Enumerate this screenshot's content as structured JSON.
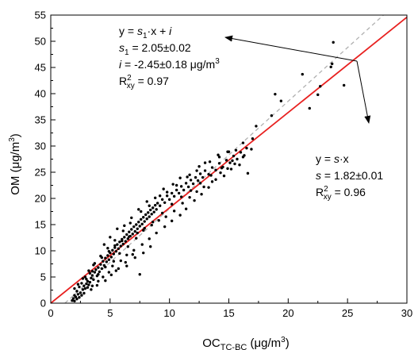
{
  "chart_data": {
    "type": "scatter",
    "title": "",
    "xlabel": {
      "main": "OC",
      "sub": "TC-BC",
      "unit": " (μg/m",
      "sup": "3",
      "close": ")"
    },
    "ylabel": {
      "main": "OM",
      "unit": " (μg/m",
      "sup": "3",
      "close": ")"
    },
    "xlim": [
      0,
      30
    ],
    "ylim": [
      0,
      55
    ],
    "xticks": [
      "0",
      "5",
      "10",
      "15",
      "20",
      "25",
      "30"
    ],
    "yticks": [
      "0",
      "5",
      "10",
      "15",
      "20",
      "25",
      "30",
      "35",
      "40",
      "45",
      "50",
      "55"
    ],
    "grid": false,
    "fits": [
      {
        "equation": "y = s·x",
        "slope": 1.82,
        "intercept": 0,
        "color": "#e8201f",
        "style": "solid"
      },
      {
        "equation": "y = s1·x + i",
        "slope": 2.05,
        "intercept": -2.45,
        "color": "#b0b0b0",
        "style": "dashed"
      }
    ],
    "annotations": {
      "fit1": {
        "eq_prefix": "y = ",
        "eq_s": "s",
        "eq_sub": "1",
        "eq_mid": "·x + ",
        "eq_i": "i",
        "s_label": "s",
        "s_sub": "1",
        "s_value": " = 2.05±0.02",
        "i_label": "i",
        "i_value": " = -2.45±0.18 μg/m",
        "i_sup": "3",
        "r_label": "R",
        "r_sup": "2",
        "r_sub": "xy",
        "r_value": " = 0.97"
      },
      "fit2": {
        "eq_prefix": "y = ",
        "eq_s": "s",
        "eq_suffix": "·x",
        "s_label": "s",
        "s_value": " = 1.82±0.01",
        "r_label": "R",
        "r_sup": "2",
        "r_sub": "xy",
        "r_value": " = 0.96"
      }
    },
    "points": [
      [
        1.8,
        0.5
      ],
      [
        1.9,
        0.9
      ],
      [
        2.0,
        0.4
      ],
      [
        2.1,
        1.2
      ],
      [
        2.0,
        1.5
      ],
      [
        2.2,
        0.8
      ],
      [
        2.3,
        1.7
      ],
      [
        2.4,
        1.1
      ],
      [
        2.2,
        2.3
      ],
      [
        2.5,
        2.0
      ],
      [
        2.6,
        1.5
      ],
      [
        2.7,
        2.6
      ],
      [
        2.4,
        3.1
      ],
      [
        2.8,
        3.3
      ],
      [
        2.9,
        2.8
      ],
      [
        3.0,
        3.7
      ],
      [
        3.1,
        4.2
      ],
      [
        3.2,
        3.5
      ],
      [
        3.0,
        4.6
      ],
      [
        3.3,
        4.0
      ],
      [
        3.4,
        4.8
      ],
      [
        3.5,
        5.3
      ],
      [
        3.3,
        5.7
      ],
      [
        3.6,
        4.5
      ],
      [
        3.7,
        5.9
      ],
      [
        3.8,
        6.4
      ],
      [
        3.9,
        5.2
      ],
      [
        4.0,
        6.8
      ],
      [
        3.5,
        6.1
      ],
      [
        4.1,
        6.0
      ],
      [
        4.2,
        7.4
      ],
      [
        4.3,
        6.6
      ],
      [
        2.9,
        5.0
      ],
      [
        4.4,
        8.0
      ],
      [
        4.5,
        7.2
      ],
      [
        4.6,
        8.6
      ],
      [
        4.7,
        7.9
      ],
      [
        4.8,
        9.1
      ],
      [
        4.9,
        8.3
      ],
      [
        5.0,
        9.6
      ],
      [
        5.1,
        8.8
      ],
      [
        5.2,
        10.1
      ],
      [
        5.3,
        9.4
      ],
      [
        5.4,
        10.6
      ],
      [
        5.5,
        9.9
      ],
      [
        5.6,
        11.2
      ],
      [
        5.7,
        10.4
      ],
      [
        5.8,
        11.7
      ],
      [
        5.9,
        10.9
      ],
      [
        6.0,
        12.2
      ],
      [
        6.1,
        11.3
      ],
      [
        6.2,
        12.6
      ],
      [
        6.3,
        11.8
      ],
      [
        6.4,
        13.1
      ],
      [
        6.5,
        12.3
      ],
      [
        6.6,
        13.6
      ],
      [
        6.7,
        12.8
      ],
      [
        6.8,
        14.1
      ],
      [
        6.9,
        13.2
      ],
      [
        7.0,
        14.6
      ],
      [
        7.1,
        13.7
      ],
      [
        7.2,
        15.0
      ],
      [
        7.3,
        14.2
      ],
      [
        7.4,
        15.5
      ],
      [
        7.5,
        14.7
      ],
      [
        7.6,
        16.0
      ],
      [
        7.7,
        15.1
      ],
      [
        7.8,
        16.4
      ],
      [
        7.9,
        15.6
      ],
      [
        8.0,
        16.9
      ],
      [
        8.1,
        16.1
      ],
      [
        8.2,
        17.3
      ],
      [
        8.3,
        16.5
      ],
      [
        8.4,
        17.8
      ],
      [
        8.5,
        17.0
      ],
      [
        8.6,
        18.2
      ],
      [
        8.7,
        17.4
      ],
      [
        8.8,
        18.7
      ],
      [
        8.9,
        17.9
      ],
      [
        9.0,
        19.1
      ],
      [
        9.2,
        18.6
      ],
      [
        9.4,
        19.8
      ],
      [
        9.6,
        19.2
      ],
      [
        9.8,
        20.5
      ],
      [
        10.0,
        19.8
      ],
      [
        10.2,
        21.0
      ],
      [
        10.4,
        20.4
      ],
      [
        10.6,
        21.6
      ],
      [
        10.8,
        21.0
      ],
      [
        11.0,
        22.3
      ],
      [
        11.2,
        21.6
      ],
      [
        11.4,
        22.9
      ],
      [
        11.6,
        22.2
      ],
      [
        11.8,
        23.5
      ],
      [
        12.0,
        22.8
      ],
      [
        12.2,
        24.0
      ],
      [
        12.4,
        23.4
      ],
      [
        12.6,
        24.7
      ],
      [
        12.8,
        24.0
      ],
      [
        13.0,
        25.3
      ],
      [
        13.3,
        24.6
      ],
      [
        13.6,
        25.9
      ],
      [
        13.9,
        25.4
      ],
      [
        14.2,
        26.7
      ],
      [
        14.5,
        26.0
      ],
      [
        14.8,
        27.3
      ],
      [
        15.1,
        26.8
      ],
      [
        15.4,
        28.1
      ],
      [
        15.7,
        27.5
      ],
      [
        16.0,
        28.8
      ],
      [
        16.3,
        28.2
      ],
      [
        16.5,
        29.6
      ],
      [
        15.0,
        28.9
      ],
      [
        14.2,
        27.9
      ],
      [
        13.0,
        26.8
      ],
      [
        12.3,
        25.3
      ],
      [
        11.5,
        24.1
      ],
      [
        10.6,
        22.5
      ],
      [
        9.8,
        21.2
      ],
      [
        9.2,
        20.5
      ],
      [
        8.3,
        18.6
      ],
      [
        7.6,
        17.5
      ],
      [
        6.7,
        15.3
      ],
      [
        6.1,
        13.8
      ],
      [
        5.4,
        12.0
      ],
      [
        4.8,
        10.5
      ],
      [
        4.2,
        9.0
      ],
      [
        3.6,
        7.3
      ],
      [
        3.2,
        6.2
      ],
      [
        2.7,
        4.7
      ],
      [
        4.0,
        5.5
      ],
      [
        4.6,
        6.9
      ],
      [
        5.3,
        8.0
      ],
      [
        5.8,
        9.5
      ],
      [
        6.5,
        10.8
      ],
      [
        7.2,
        12.4
      ],
      [
        7.8,
        13.9
      ],
      [
        8.6,
        15.5
      ],
      [
        9.4,
        17.2
      ],
      [
        10.2,
        18.9
      ],
      [
        11.0,
        20.3
      ],
      [
        11.8,
        21.5
      ],
      [
        12.6,
        22.9
      ],
      [
        13.5,
        24.4
      ],
      [
        14.4,
        25.8
      ],
      [
        15.3,
        27.2
      ],
      [
        16.2,
        27.9
      ],
      [
        16.6,
        24.8
      ],
      [
        7.5,
        5.5
      ],
      [
        5.5,
        6.2
      ],
      [
        6.3,
        7.8
      ],
      [
        6.9,
        9.3
      ],
      [
        4.5,
        11.2
      ],
      [
        5.0,
        12.6
      ],
      [
        5.6,
        14.2
      ],
      [
        6.2,
        14.8
      ],
      [
        6.8,
        16.3
      ],
      [
        7.4,
        17.9
      ],
      [
        8.1,
        19.4
      ],
      [
        8.8,
        20.1
      ],
      [
        9.5,
        21.8
      ],
      [
        10.3,
        22.7
      ],
      [
        10.9,
        23.9
      ],
      [
        11.7,
        24.5
      ],
      [
        12.5,
        26.1
      ],
      [
        13.4,
        27.0
      ],
      [
        14.1,
        28.3
      ],
      [
        14.9,
        28.9
      ],
      [
        15.6,
        29.2
      ],
      [
        16.2,
        30.6
      ],
      [
        17.0,
        31.4
      ],
      [
        17.3,
        33.8
      ],
      [
        16.9,
        29.4
      ],
      [
        18.6,
        35.8
      ],
      [
        18.9,
        39.9
      ],
      [
        19.4,
        38.6
      ],
      [
        21.2,
        43.7
      ],
      [
        21.8,
        37.2
      ],
      [
        22.5,
        39.8
      ],
      [
        22.7,
        41.4
      ],
      [
        23.6,
        45.1
      ],
      [
        23.7,
        45.7
      ],
      [
        23.8,
        49.8
      ],
      [
        24.7,
        41.6
      ],
      [
        3.1,
        3.0
      ],
      [
        2.6,
        3.8
      ],
      [
        3.5,
        3.3
      ],
      [
        4.0,
        4.2
      ],
      [
        4.4,
        5.0
      ],
      [
        4.9,
        5.9
      ],
      [
        5.2,
        7.1
      ],
      [
        5.9,
        8.1
      ],
      [
        6.4,
        9.2
      ],
      [
        7.0,
        10.1
      ],
      [
        7.7,
        11.2
      ],
      [
        8.3,
        12.3
      ],
      [
        8.9,
        13.4
      ],
      [
        9.6,
        14.6
      ],
      [
        10.2,
        15.7
      ],
      [
        10.9,
        16.8
      ],
      [
        11.4,
        18.0
      ],
      [
        12.1,
        19.6
      ],
      [
        12.7,
        20.8
      ],
      [
        13.3,
        22.1
      ],
      [
        13.9,
        23.6
      ],
      [
        14.6,
        24.3
      ],
      [
        15.2,
        25.6
      ],
      [
        15.9,
        26.4
      ],
      [
        2.0,
        2.8
      ],
      [
        2.3,
        3.6
      ],
      [
        3.7,
        7.6
      ],
      [
        4.3,
        8.7
      ],
      [
        4.9,
        9.9
      ],
      [
        5.4,
        11.0
      ],
      [
        6.0,
        11.9
      ],
      [
        6.6,
        12.7
      ],
      [
        7.3,
        13.4
      ],
      [
        7.9,
        14.3
      ],
      [
        8.5,
        14.9
      ],
      [
        9.1,
        15.8
      ],
      [
        9.7,
        16.5
      ],
      [
        10.4,
        17.6
      ],
      [
        11.1,
        19.1
      ],
      [
        11.7,
        20.2
      ],
      [
        12.3,
        21.3
      ],
      [
        12.9,
        22.2
      ],
      [
        13.6,
        23.2
      ],
      [
        14.3,
        24.9
      ],
      [
        14.9,
        25.7
      ],
      [
        15.5,
        26.6
      ],
      [
        3.4,
        2.6
      ],
      [
        3.9,
        3.4
      ],
      [
        4.6,
        4.3
      ],
      [
        2.8,
        1.9
      ],
      [
        5.1,
        5.4
      ],
      [
        5.7,
        6.6
      ],
      [
        6.4,
        7.1
      ],
      [
        7.1,
        8.7
      ],
      [
        7.8,
        9.6
      ],
      [
        8.4,
        10.8
      ]
    ]
  }
}
